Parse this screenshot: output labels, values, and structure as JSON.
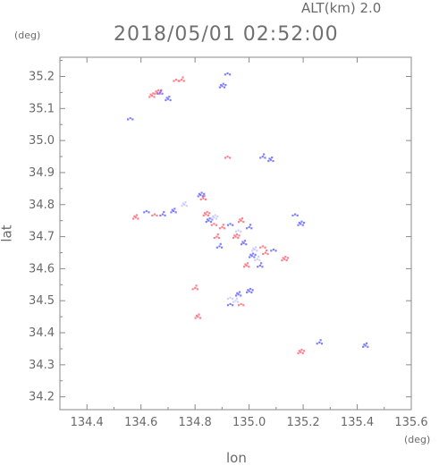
{
  "header": {
    "altitude": "ALT(km) 2.0",
    "datetime": "2018/05/01 02:52:00"
  },
  "chart_data": {
    "type": "scatter",
    "title": "2018/05/01 02:52:00",
    "xlabel": "lon",
    "ylabel": "lat",
    "x_unit": "(deg)",
    "y_unit": "(deg)",
    "xlim": [
      134.3,
      135.6
    ],
    "ylim": [
      34.16,
      35.26
    ],
    "x_ticks": [
      134.4,
      134.6,
      134.8,
      135.0,
      135.2,
      135.4,
      135.6
    ],
    "x_tick_labels": [
      "134.4",
      "134.6",
      "134.8",
      "135.0",
      "135.2",
      "135.4",
      "135.6"
    ],
    "y_ticks": [
      34.2,
      34.3,
      34.4,
      34.5,
      34.6,
      34.7,
      34.8,
      34.9,
      35.0,
      35.1,
      35.2
    ],
    "y_tick_labels": [
      "34.2",
      "34.3",
      "34.4",
      "34.5",
      "34.6",
      "34.7",
      "34.8",
      "34.9",
      "35.0",
      "35.1",
      "35.2"
    ],
    "grid": false,
    "colors": {
      "positive": "#ff6b7a",
      "negative": "#6b6bff",
      "light": "#c8c8ff"
    },
    "series": [
      {
        "color": "positive",
        "points": [
          [
            134.73,
            35.19
          ],
          [
            134.75,
            35.19
          ],
          [
            134.64,
            35.14
          ],
          [
            134.66,
            35.15
          ],
          [
            134.92,
            34.95
          ],
          [
            134.83,
            34.82
          ],
          [
            134.58,
            34.76
          ],
          [
            134.84,
            34.77
          ],
          [
            134.87,
            34.74
          ],
          [
            134.9,
            34.73
          ],
          [
            134.97,
            34.75
          ],
          [
            134.95,
            34.7
          ],
          [
            135.05,
            34.67
          ],
          [
            135.06,
            34.65
          ],
          [
            134.99,
            34.61
          ],
          [
            135.13,
            34.63
          ],
          [
            134.97,
            34.49
          ],
          [
            134.8,
            34.54
          ],
          [
            134.81,
            34.45
          ],
          [
            135.19,
            34.34
          ],
          [
            134.65,
            34.77
          ],
          [
            134.88,
            34.7
          ]
        ]
      },
      {
        "color": "negative",
        "points": [
          [
            134.92,
            35.21
          ],
          [
            134.67,
            35.15
          ],
          [
            134.7,
            35.13
          ],
          [
            134.9,
            35.17
          ],
          [
            134.56,
            35.07
          ],
          [
            135.05,
            34.95
          ],
          [
            135.08,
            34.94
          ],
          [
            134.82,
            34.83
          ],
          [
            134.62,
            34.78
          ],
          [
            134.68,
            34.77
          ],
          [
            134.72,
            34.78
          ],
          [
            134.85,
            34.75
          ],
          [
            134.93,
            34.74
          ],
          [
            135.0,
            34.73
          ],
          [
            134.98,
            34.68
          ],
          [
            135.01,
            34.64
          ],
          [
            135.09,
            34.66
          ],
          [
            135.04,
            34.61
          ],
          [
            134.96,
            34.52
          ],
          [
            135.0,
            34.53
          ],
          [
            134.93,
            34.49
          ],
          [
            135.26,
            34.37
          ],
          [
            135.43,
            34.36
          ],
          [
            135.19,
            34.74
          ],
          [
            135.17,
            34.77
          ],
          [
            134.89,
            34.67
          ]
        ]
      },
      {
        "color": "light",
        "points": [
          [
            134.93,
            34.51
          ],
          [
            134.95,
            34.5
          ],
          [
            134.76,
            34.8
          ],
          [
            134.87,
            34.76
          ],
          [
            134.96,
            34.72
          ],
          [
            135.03,
            34.63
          ],
          [
            135.02,
            34.66
          ]
        ]
      }
    ]
  }
}
